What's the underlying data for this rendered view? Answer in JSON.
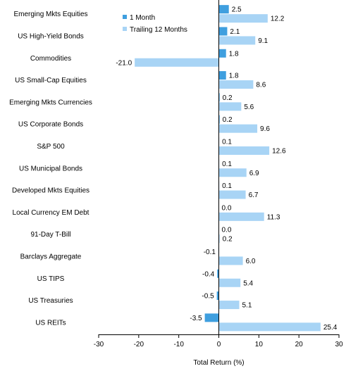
{
  "chart_data": {
    "type": "bar",
    "orientation": "horizontal",
    "categories": [
      "Emerging Mkts Equities",
      "US High-Yield Bonds",
      "Commodities",
      "US Small-Cap Equities",
      "Emerging Mkts Currencies",
      "US Corporate Bonds",
      "S&P 500",
      "US Municipal Bonds",
      "Developed Mkts Equities",
      "Local Currency EM Debt",
      "91-Day T-Bill",
      "Barclays Aggregate",
      "US TIPS",
      "US Treasuries",
      "US REITs"
    ],
    "series": [
      {
        "name": "1 Month",
        "color": "#3f9fdf",
        "values": [
          2.5,
          2.1,
          1.8,
          1.8,
          0.2,
          0.2,
          0.1,
          0.1,
          0.1,
          0.0,
          0.0,
          -0.1,
          -0.4,
          -0.5,
          -3.5
        ],
        "labels": [
          "2.5",
          "2.1",
          "1.8",
          "1.8",
          "0.2",
          "0.2",
          "0.1",
          "0.1",
          "0.1",
          "0.0",
          "0.0",
          "-0.1",
          "-0.4",
          "-0.5",
          "-3.5"
        ]
      },
      {
        "name": "Trailing 12 Months",
        "color": "#a8d4f5",
        "values": [
          12.2,
          9.1,
          -21.0,
          8.6,
          5.6,
          9.6,
          12.6,
          6.9,
          6.7,
          11.3,
          0.2,
          6.0,
          5.4,
          5.1,
          25.4
        ],
        "labels": [
          "12.2",
          "9.1",
          "-21.0",
          "8.6",
          "5.6",
          "9.6",
          "12.6",
          "6.9",
          "6.7",
          "11.3",
          "0.2",
          "6.0",
          "5.4",
          "5.1",
          "25.4"
        ]
      }
    ],
    "xlim": [
      -30,
      30
    ],
    "xticks": [
      -30,
      -20,
      -10,
      0,
      10,
      20,
      30
    ],
    "xtick_labels": [
      "-30",
      "-20",
      "-10",
      "0",
      "10",
      "20",
      "30"
    ],
    "xlabel": "Total Return (%)",
    "ylabel": "",
    "title": "",
    "grid": false,
    "legend_position": "top-left"
  }
}
